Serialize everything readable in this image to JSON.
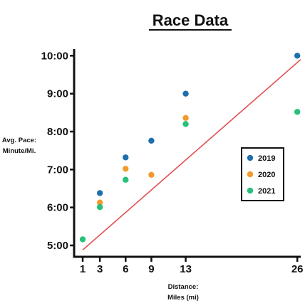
{
  "chart_data": {
    "type": "scatter",
    "title": "Race Data",
    "xlabel": [
      "Distance:",
      "Miles (mi)"
    ],
    "ylabel": [
      "Avg. Pace:",
      "Minute/Mi."
    ],
    "x_ticks": [
      1,
      3,
      6,
      9,
      13,
      26
    ],
    "y_ticks": [
      "10:00",
      "9:00",
      "8:00",
      "7:00",
      "6:00",
      "5:00"
    ],
    "y_tick_values": [
      10,
      9,
      8,
      7,
      6,
      5
    ],
    "xlim": [
      0,
      26.4
    ],
    "ylim": [
      4.7,
      10.1
    ],
    "legend_position": "right",
    "series": [
      {
        "name": "2019",
        "color": "#1f6fad",
        "points": [
          [
            3,
            6.38
          ],
          [
            6,
            7.32
          ],
          [
            9,
            7.76
          ],
          [
            13,
            9.0
          ],
          [
            26,
            10.0
          ]
        ]
      },
      {
        "name": "2020",
        "color": "#f39a2e",
        "points": [
          [
            3,
            6.13
          ],
          [
            6,
            7.02
          ],
          [
            9,
            6.86
          ],
          [
            13,
            8.36
          ]
        ]
      },
      {
        "name": "2021",
        "color": "#27c07a",
        "points": [
          [
            1,
            5.16
          ],
          [
            3,
            6.01
          ],
          [
            6,
            6.73
          ],
          [
            13,
            8.2
          ],
          [
            26,
            8.52
          ]
        ]
      }
    ],
    "trendline": {
      "color": "#e05050",
      "from": [
        1,
        4.88
      ],
      "to": [
        26.4,
        9.9
      ]
    }
  }
}
